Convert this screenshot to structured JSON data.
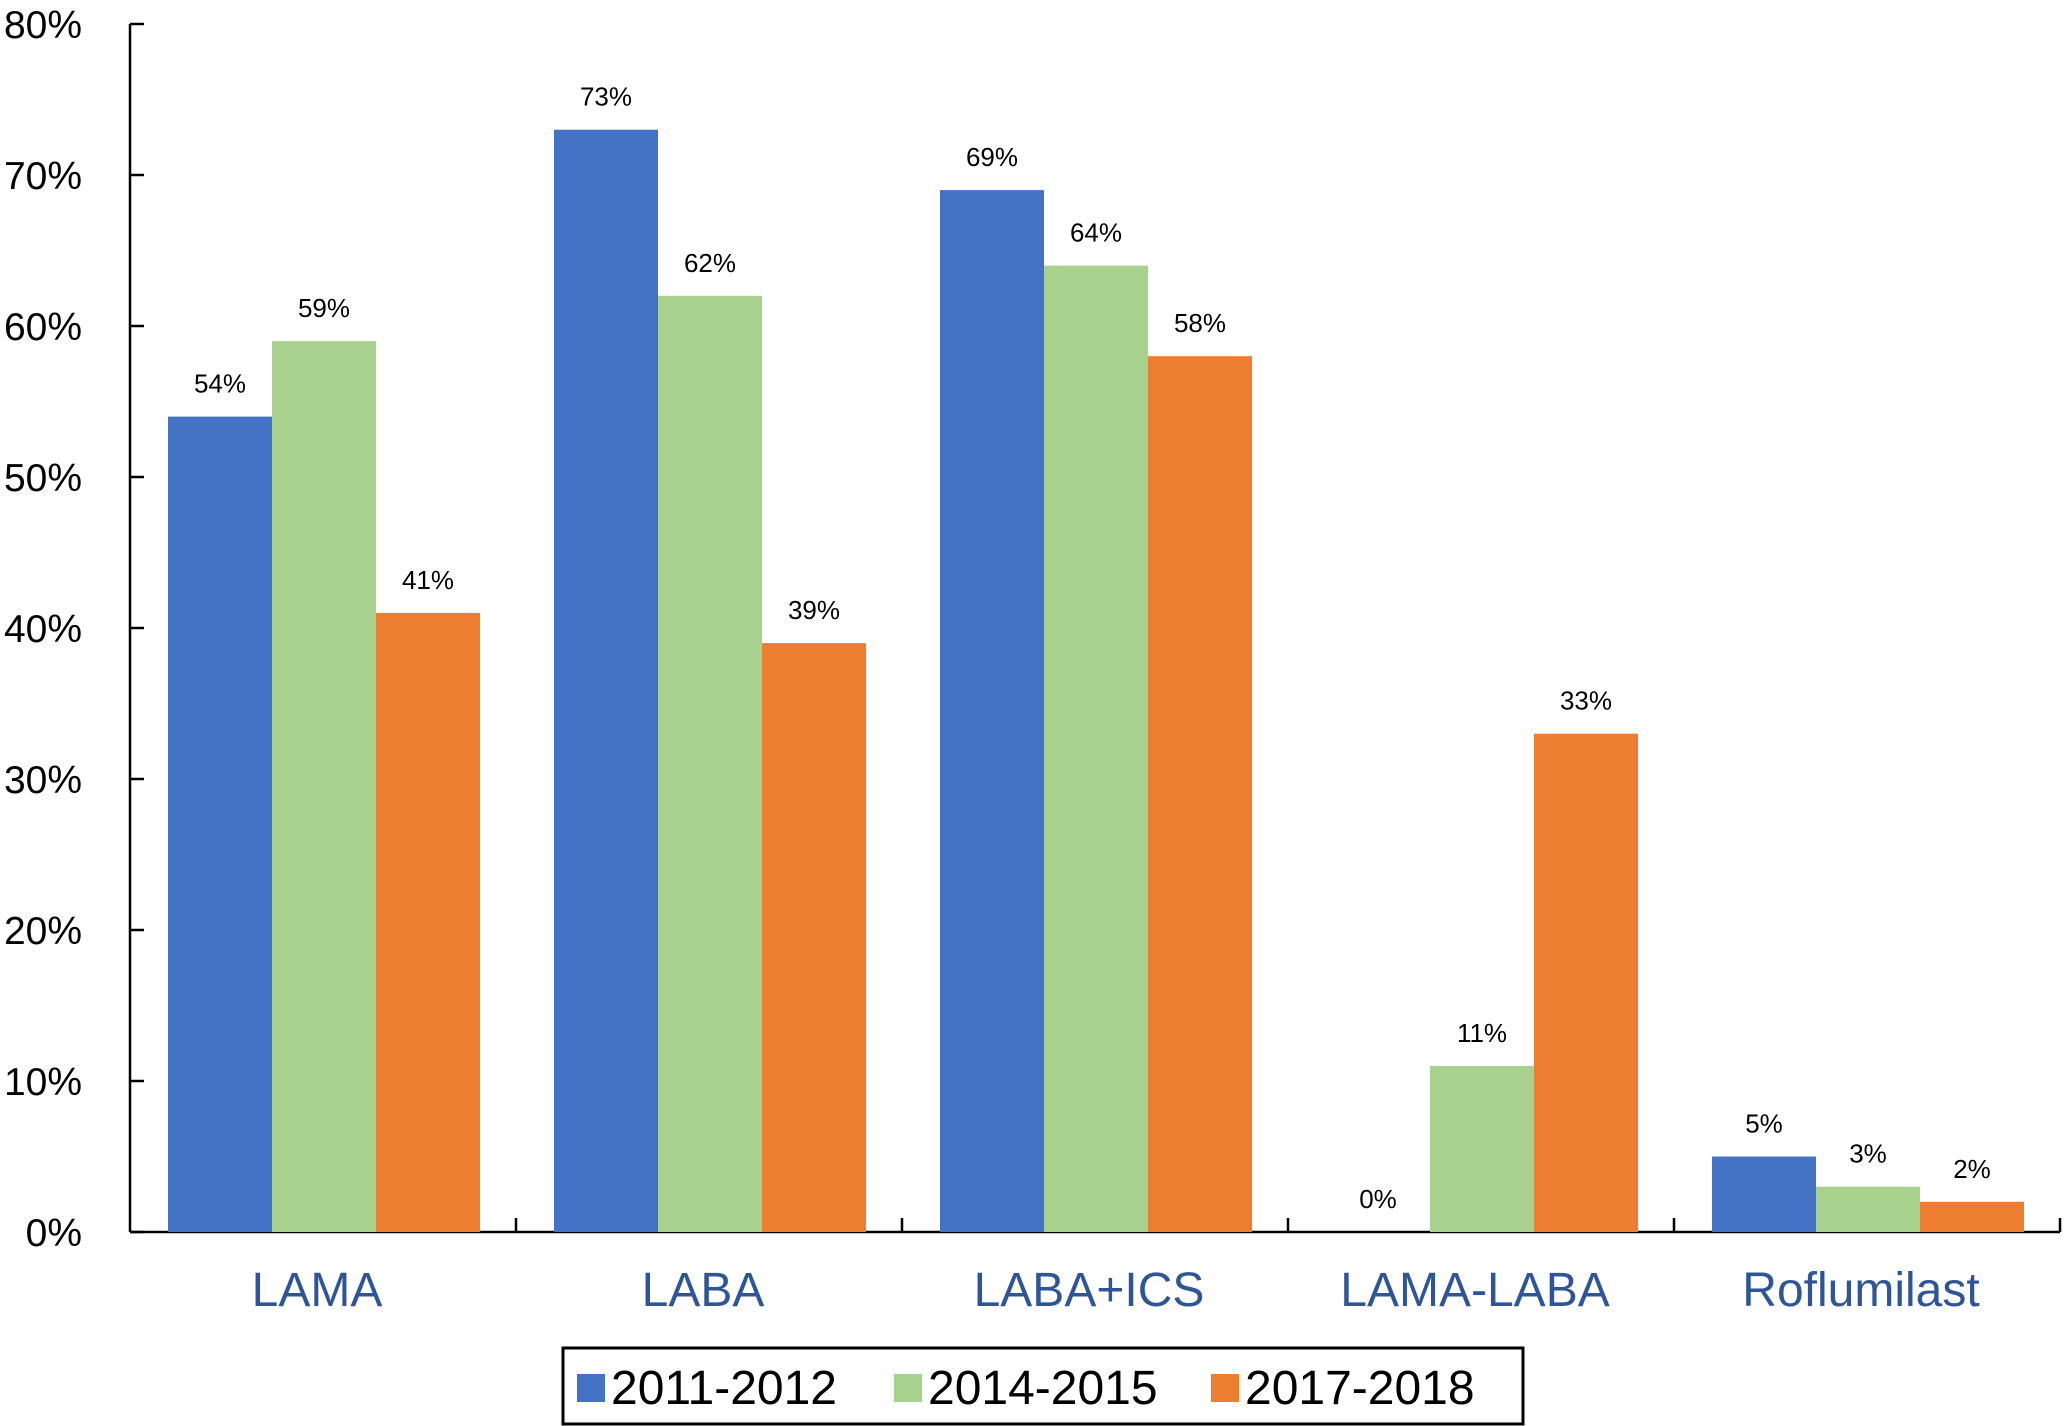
{
  "chart_data": {
    "type": "bar",
    "title": "",
    "xlabel": "",
    "ylabel": "",
    "ylim": [
      0,
      80
    ],
    "yticks": [
      0,
      10,
      20,
      30,
      40,
      50,
      60,
      70,
      80
    ],
    "ytick_labels": [
      "0%",
      "10%",
      "20%",
      "30%",
      "40%",
      "50%",
      "60%",
      "70%",
      "80%"
    ],
    "grid": false,
    "legend_position": "bottom",
    "categories": [
      "LAMA",
      "LABA",
      "LABA+ICS",
      "LAMA-LABA",
      "Roflumilast"
    ],
    "series": [
      {
        "name": "2011-2012",
        "color": "#4472C4",
        "values": [
          54,
          73,
          69,
          0,
          5
        ],
        "labels": [
          "54%",
          "73%",
          "69%",
          "0%",
          "5%"
        ]
      },
      {
        "name": "2014-2015",
        "color": "#A9D18E",
        "values": [
          59,
          62,
          64,
          11,
          3
        ],
        "labels": [
          "59%",
          "62%",
          "64%",
          "11%",
          "3%"
        ]
      },
      {
        "name": "2017-2018",
        "color": "#ED7D31",
        "values": [
          41,
          39,
          58,
          33,
          2
        ],
        "labels": [
          "41%",
          "39%",
          "58%",
          "33%",
          "2%"
        ]
      }
    ],
    "category_label_color": "#2E5597"
  }
}
